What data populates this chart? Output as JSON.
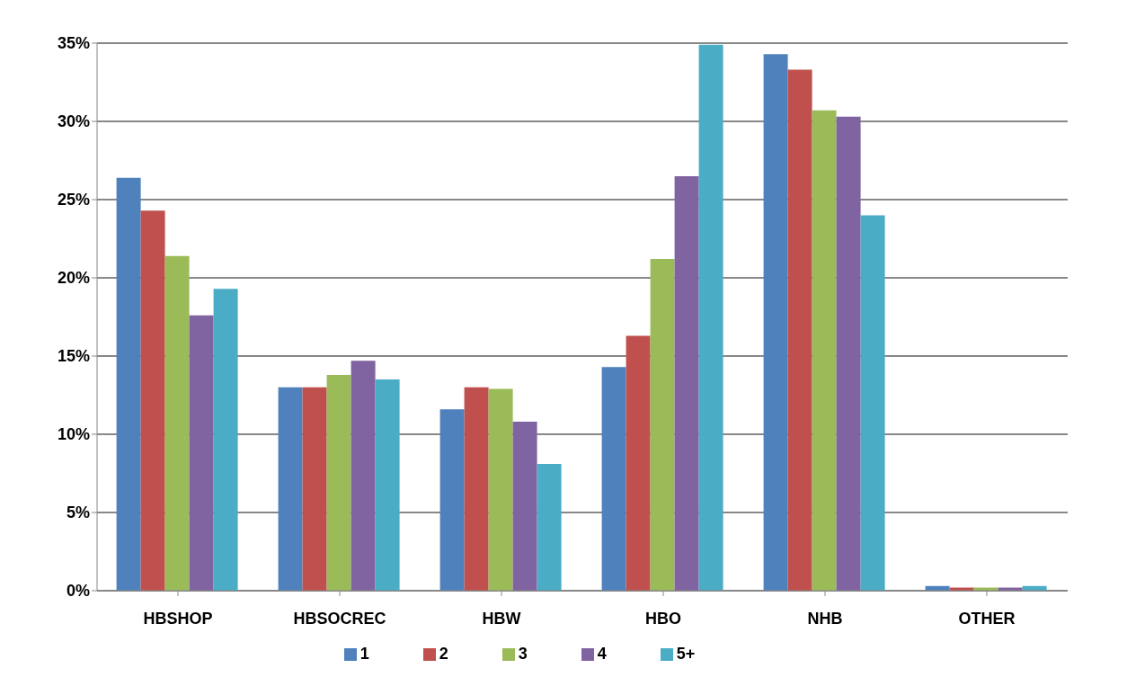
{
  "chart_data": {
    "type": "bar",
    "categories": [
      "HBSHOP",
      "HBSOCREC",
      "HBW",
      "HBO",
      "NHB",
      "OTHER"
    ],
    "series": [
      {
        "name": "1",
        "color": "#4f81bd",
        "values": [
          26.4,
          13.0,
          11.6,
          14.3,
          34.3,
          0.3
        ]
      },
      {
        "name": "2",
        "color": "#c0504d",
        "values": [
          24.3,
          13.0,
          13.0,
          16.3,
          33.3,
          0.2
        ]
      },
      {
        "name": "3",
        "color": "#9bbb59",
        "values": [
          21.4,
          13.8,
          12.9,
          21.2,
          30.7,
          0.2
        ]
      },
      {
        "name": "4",
        "color": "#8064a2",
        "values": [
          17.6,
          14.7,
          10.8,
          26.5,
          30.3,
          0.2
        ]
      },
      {
        "name": "5+",
        "color": "#4bacc6",
        "values": [
          19.3,
          13.5,
          8.1,
          34.9,
          24.0,
          0.3
        ]
      }
    ],
    "ylim": [
      0,
      35
    ],
    "yticks": [
      {
        "value": 0,
        "label": "0%"
      },
      {
        "value": 5,
        "label": "5%"
      },
      {
        "value": 10,
        "label": "10%"
      },
      {
        "value": 15,
        "label": "15%"
      },
      {
        "value": 20,
        "label": "20%"
      },
      {
        "value": 25,
        "label": "25%"
      },
      {
        "value": 30,
        "label": "30%"
      },
      {
        "value": 35,
        "label": "35%"
      }
    ],
    "grid": "y",
    "legend": "bottom"
  }
}
